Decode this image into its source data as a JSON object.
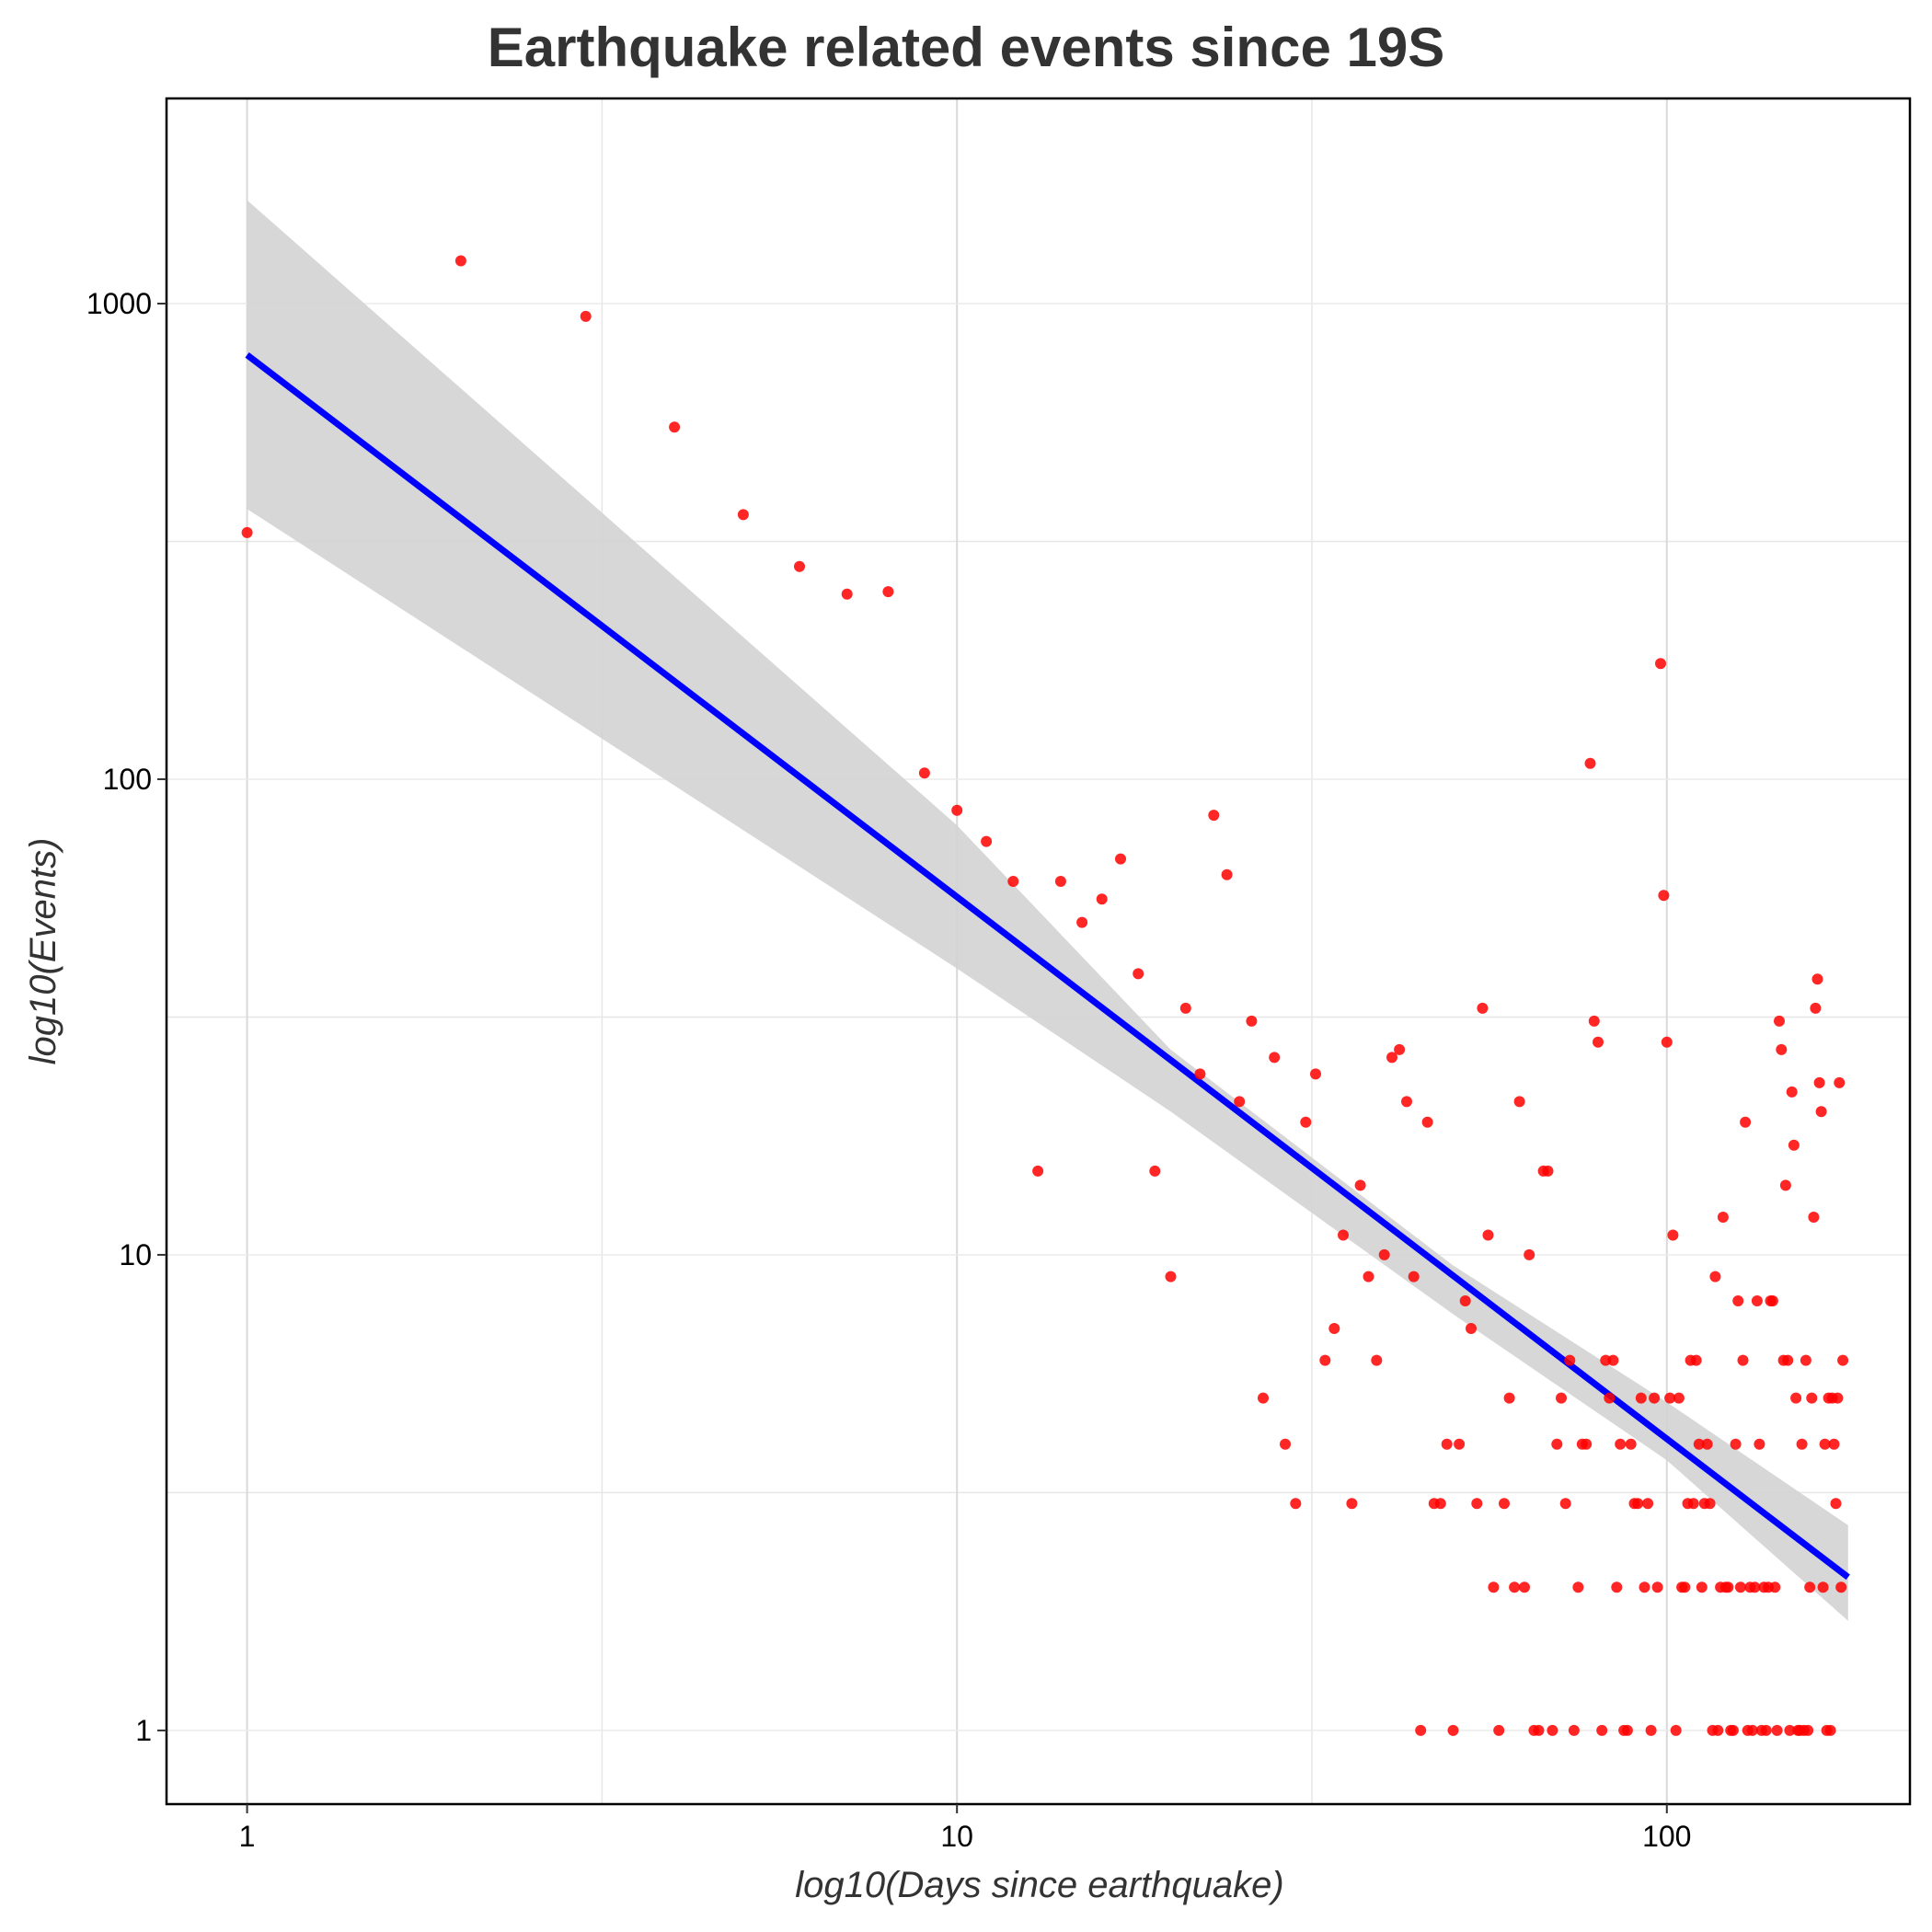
{
  "chart_data": {
    "type": "scatter",
    "title": "Earthquake related events since 19S",
    "xlabel": "log10(Days since earthquake)",
    "ylabel": "log10(Events)",
    "x_scale": "log",
    "y_scale": "log",
    "xlim": [
      0.77,
      220
    ],
    "ylim": [
      0.7,
      2700
    ],
    "x_ticks": [
      {
        "value": 1,
        "label": "1"
      },
      {
        "value": 10,
        "label": "10"
      },
      {
        "value": 100,
        "label": "100"
      }
    ],
    "y_ticks": [
      {
        "value": 1,
        "label": "1"
      },
      {
        "value": 10,
        "label": "10"
      },
      {
        "value": 100,
        "label": "100"
      },
      {
        "value": 1000,
        "label": "1000"
      }
    ],
    "grid": true,
    "colors": {
      "points": "#ff0000",
      "fit_line": "#0000ff",
      "confidence_band": "#d3d3d3",
      "grid": "#d9d9d9",
      "frame": "#000000",
      "title": "#333333"
    },
    "fit_line": {
      "x": [
        1,
        180
      ],
      "y": [
        780,
        2.1
      ]
    },
    "confidence_band": {
      "x": [
        1,
        10,
        20,
        50,
        100,
        180
      ],
      "upper": [
        1650,
        80,
        27,
        9.5,
        4.9,
        2.7
      ],
      "lower": [
        370,
        40,
        20,
        7.5,
        3.7,
        1.7
      ]
    },
    "series": [
      {
        "points": [
          [
            1,
            330
          ],
          [
            2,
            1230
          ],
          [
            3,
            940
          ],
          [
            4,
            550
          ],
          [
            5,
            360
          ],
          [
            6,
            280
          ],
          [
            7,
            245
          ],
          [
            8,
            248
          ],
          [
            9,
            103
          ],
          [
            10,
            86
          ],
          [
            11,
            74
          ],
          [
            12,
            61
          ],
          [
            13,
            15
          ],
          [
            14,
            61
          ],
          [
            15,
            50
          ],
          [
            16,
            56
          ],
          [
            17,
            68
          ],
          [
            18,
            39
          ],
          [
            19,
            15
          ],
          [
            20,
            9
          ],
          [
            21,
            33
          ],
          [
            22,
            24
          ],
          [
            23,
            84
          ],
          [
            24,
            63
          ],
          [
            25,
            21
          ],
          [
            26,
            31
          ],
          [
            27,
            5
          ],
          [
            28,
            26
          ],
          [
            29,
            4
          ],
          [
            30,
            3
          ],
          [
            31,
            19
          ],
          [
            32,
            24
          ],
          [
            33,
            6
          ],
          [
            34,
            7
          ],
          [
            35,
            11
          ],
          [
            36,
            3
          ],
          [
            37,
            14
          ],
          [
            38,
            9
          ],
          [
            39,
            6
          ],
          [
            40,
            10
          ],
          [
            41,
            26
          ],
          [
            42,
            27
          ],
          [
            43,
            21
          ],
          [
            44,
            9
          ],
          [
            45,
            1
          ],
          [
            46,
            19
          ],
          [
            47,
            3
          ],
          [
            48,
            3
          ],
          [
            49,
            4
          ],
          [
            50,
            1
          ],
          [
            51,
            4
          ],
          [
            52,
            8
          ],
          [
            53,
            7
          ],
          [
            54,
            3
          ],
          [
            55,
            33
          ],
          [
            56,
            11
          ],
          [
            57,
            2
          ],
          [
            58,
            1
          ],
          [
            59,
            3
          ],
          [
            60,
            5
          ],
          [
            61,
            2
          ],
          [
            62,
            21
          ],
          [
            63,
            2
          ],
          [
            64,
            10
          ],
          [
            65,
            1
          ],
          [
            66,
            1
          ],
          [
            67,
            15
          ],
          [
            68,
            15
          ],
          [
            69,
            1
          ],
          [
            70,
            4
          ],
          [
            71,
            5
          ],
          [
            72,
            3
          ],
          [
            73,
            6
          ],
          [
            74,
            1
          ],
          [
            75,
            2
          ],
          [
            76,
            4
          ],
          [
            77,
            4
          ],
          [
            78,
            108
          ],
          [
            79,
            31
          ],
          [
            80,
            28
          ],
          [
            81,
            1
          ],
          [
            82,
            6
          ],
          [
            83,
            5
          ],
          [
            84,
            6
          ],
          [
            85,
            2
          ],
          [
            86,
            4
          ],
          [
            87,
            1
          ],
          [
            88,
            1
          ],
          [
            89,
            4
          ],
          [
            90,
            3
          ],
          [
            91,
            3
          ],
          [
            92,
            5
          ],
          [
            93,
            2
          ],
          [
            94,
            3
          ],
          [
            95,
            1
          ],
          [
            96,
            5
          ],
          [
            97,
            2
          ],
          [
            98,
            175
          ],
          [
            99,
            57
          ],
          [
            100,
            28
          ],
          [
            101,
            5
          ],
          [
            102,
            11
          ],
          [
            103,
            1
          ],
          [
            104,
            5
          ],
          [
            105,
            2
          ],
          [
            106,
            2
          ],
          [
            107,
            3
          ],
          [
            108,
            6
          ],
          [
            109,
            3
          ],
          [
            110,
            6
          ],
          [
            111,
            4
          ],
          [
            112,
            2
          ],
          [
            113,
            3
          ],
          [
            114,
            4
          ],
          [
            115,
            3
          ],
          [
            116,
            1
          ],
          [
            117,
            9
          ],
          [
            118,
            1
          ],
          [
            119,
            2
          ],
          [
            120,
            12
          ],
          [
            121,
            2
          ],
          [
            122,
            2
          ],
          [
            123,
            1
          ],
          [
            124,
            1
          ],
          [
            125,
            4
          ],
          [
            126,
            8
          ],
          [
            127,
            2
          ],
          [
            128,
            6
          ],
          [
            129,
            19
          ],
          [
            130,
            1
          ],
          [
            131,
            2
          ],
          [
            132,
            1
          ],
          [
            133,
            2
          ],
          [
            134,
            8
          ],
          [
            135,
            4
          ],
          [
            136,
            1
          ],
          [
            137,
            2
          ],
          [
            138,
            1
          ],
          [
            139,
            2
          ],
          [
            140,
            8
          ],
          [
            141,
            8
          ],
          [
            142,
            2
          ],
          [
            143,
            1
          ],
          [
            144,
            31
          ],
          [
            145,
            27
          ],
          [
            146,
            6
          ],
          [
            147,
            14
          ],
          [
            148,
            6
          ],
          [
            149,
            1
          ],
          [
            150,
            22
          ],
          [
            151,
            17
          ],
          [
            152,
            5
          ],
          [
            153,
            1
          ],
          [
            154,
            1
          ],
          [
            155,
            4
          ],
          [
            156,
            1
          ],
          [
            157,
            6
          ],
          [
            158,
            1
          ],
          [
            159,
            2
          ],
          [
            160,
            5
          ],
          [
            161,
            12
          ],
          [
            162,
            33
          ],
          [
            163,
            38
          ],
          [
            164,
            23
          ],
          [
            165,
            20
          ],
          [
            166,
            2
          ],
          [
            167,
            4
          ],
          [
            168,
            1
          ],
          [
            169,
            5
          ],
          [
            170,
            1
          ],
          [
            171,
            5
          ],
          [
            172,
            4
          ],
          [
            173,
            3
          ],
          [
            174,
            5
          ],
          [
            175,
            23
          ],
          [
            176,
            2
          ],
          [
            177,
            6
          ]
        ]
      }
    ]
  }
}
